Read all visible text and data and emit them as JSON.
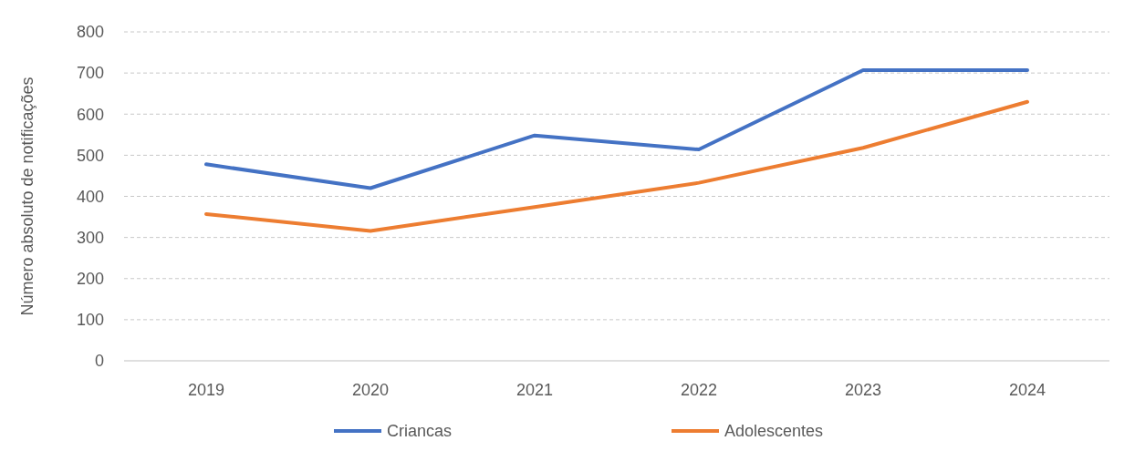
{
  "chart_data": {
    "type": "line",
    "ylabel": "Número absoluto de  notificações",
    "categories": [
      "2019",
      "2020",
      "2021",
      "2022",
      "2023",
      "2024"
    ],
    "series": [
      {
        "name": "Criancas",
        "color": "#4472c4",
        "values": [
          478,
          420,
          548,
          514,
          707,
          707
        ]
      },
      {
        "name": "Adolescentes",
        "color": "#ed7d31",
        "values": [
          357,
          316,
          374,
          433,
          518,
          630
        ]
      }
    ],
    "ylim": [
      0,
      800
    ],
    "yticks": [
      0,
      100,
      200,
      300,
      400,
      500,
      600,
      700,
      800
    ],
    "grid": "y",
    "legend": "bottom",
    "marker": "none",
    "line_style": "solid"
  }
}
